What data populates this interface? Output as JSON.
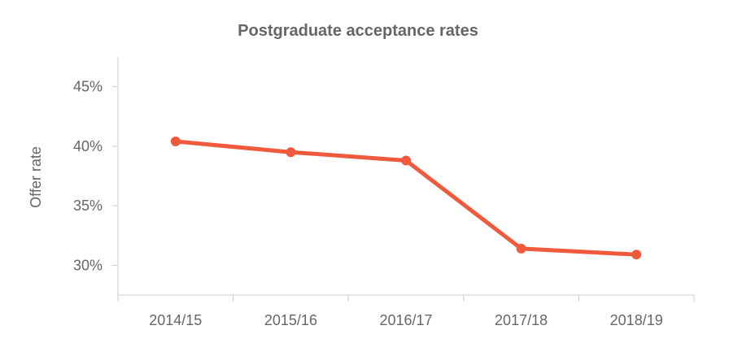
{
  "chart_data": {
    "type": "line",
    "title": "Postgraduate acceptance rates",
    "xlabel": "",
    "ylabel": "Offer rate",
    "categories": [
      "2014/15",
      "2015/16",
      "2016/17",
      "2017/18",
      "2018/19"
    ],
    "series": [
      {
        "values": [
          40.4,
          39.5,
          38.8,
          31.4,
          30.9
        ]
      }
    ],
    "yticks": [
      30,
      35,
      40,
      45
    ],
    "ytick_labels": [
      "30%",
      "35%",
      "40%",
      "45%"
    ],
    "ylim": [
      27.5,
      47.5
    ],
    "grid": false,
    "legend": "none",
    "colors": {
      "line": "#f05a3c",
      "axis": "#cccccc",
      "text": "#666666"
    }
  }
}
